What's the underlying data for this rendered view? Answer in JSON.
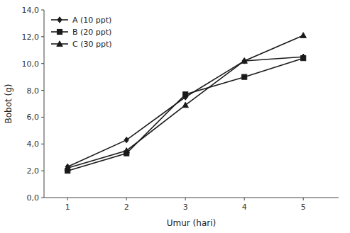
{
  "chart_data": {
    "type": "line",
    "x": [
      1,
      2,
      3,
      4,
      5
    ],
    "series": [
      {
        "name": "A (10 ppt)",
        "values": [
          2.3,
          4.3,
          7.5,
          10.2,
          10.5
        ],
        "color": "#1a1a1a",
        "marker": "diamond"
      },
      {
        "name": "B (20 ppt)",
        "values": [
          2.0,
          3.3,
          7.7,
          9.0,
          10.4
        ],
        "color": "#1a1a1a",
        "marker": "square"
      },
      {
        "name": "C (30 ppt)",
        "values": [
          2.2,
          3.5,
          6.9,
          10.2,
          12.1
        ],
        "color": "#1a1a1a",
        "marker": "triangle"
      }
    ],
    "x_label": "Umur (hari)",
    "y_label": "Bobot (g)",
    "xlim": [
      0.6,
      5.6
    ],
    "ylim": [
      0,
      14.0
    ],
    "xticks": [
      1,
      2,
      3,
      4,
      5
    ],
    "yticks": [
      {
        "value": 0.0,
        "label": "0,0"
      },
      {
        "value": 2.0,
        "label": "2,0"
      },
      {
        "value": 4.0,
        "label": "4,0"
      },
      {
        "value": 6.0,
        "label": "6,0"
      },
      {
        "value": 8.0,
        "label": "8,0"
      },
      {
        "value": 10.0,
        "label": "10,0"
      },
      {
        "value": 12.0,
        "label": "12,0"
      },
      {
        "value": 14.0,
        "label": "14,0"
      }
    ],
    "legend": "upper left",
    "grid": false
  }
}
